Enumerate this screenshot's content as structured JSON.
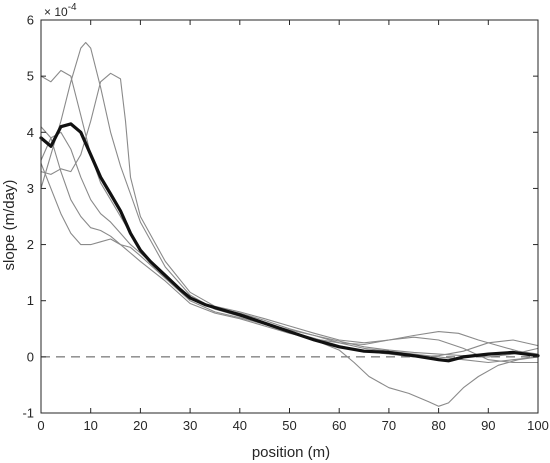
{
  "chart_data": {
    "type": "line",
    "title": "",
    "xlabel": "position (m)",
    "ylabel": "slope (m/day)",
    "y_multiplier_label": "× 10",
    "y_multiplier_exponent": "-4",
    "xlim": [
      0,
      100
    ],
    "ylim": [
      -1,
      6
    ],
    "x_ticks": [
      "0",
      "10",
      "20",
      "30",
      "40",
      "50",
      "60",
      "70",
      "80",
      "90",
      "100"
    ],
    "y_ticks": [
      "-1",
      "0",
      "1",
      "2",
      "3",
      "4",
      "5",
      "6"
    ],
    "grid": false,
    "legend": "none",
    "colors": {
      "mean": "#111111",
      "individual": "#8a8a8a",
      "reference": "#555555",
      "axes": "#262626"
    },
    "reference_line": {
      "y": 0,
      "style": "dashed"
    },
    "series": [
      {
        "role": "mean",
        "x": [
          0,
          2,
          4,
          6,
          8,
          10,
          12,
          14,
          16,
          18,
          20,
          22,
          25,
          28,
          30,
          33,
          36,
          40,
          45,
          50,
          55,
          60,
          65,
          70,
          75,
          80,
          82,
          85,
          90,
          95,
          100
        ],
        "y": [
          3.9,
          3.75,
          4.1,
          4.15,
          4.0,
          3.6,
          3.2,
          2.9,
          2.6,
          2.2,
          1.9,
          1.7,
          1.45,
          1.2,
          1.05,
          0.93,
          0.85,
          0.75,
          0.6,
          0.45,
          0.3,
          0.18,
          0.1,
          0.08,
          0.02,
          -0.05,
          -0.07,
          0.0,
          0.05,
          0.08,
          0.02
        ]
      },
      {
        "role": "individual",
        "x": [
          0,
          2,
          4,
          6,
          8,
          10,
          12,
          14,
          16,
          18,
          20,
          25,
          30,
          35,
          40,
          45,
          50,
          55,
          60,
          65,
          70,
          75,
          80,
          85,
          90,
          95,
          100
        ],
        "y": [
          5.0,
          4.9,
          5.1,
          5.0,
          4.3,
          3.6,
          3.1,
          2.8,
          2.5,
          2.2,
          1.9,
          1.4,
          1.05,
          0.88,
          0.78,
          0.65,
          0.5,
          0.38,
          0.25,
          0.15,
          0.1,
          0.05,
          0.0,
          -0.05,
          -0.1,
          -0.05,
          0.0
        ]
      },
      {
        "role": "individual",
        "x": [
          0,
          2,
          4,
          6,
          8,
          9,
          10,
          12,
          14,
          16,
          18,
          20,
          25,
          30,
          35,
          40,
          45,
          50,
          55,
          60,
          63,
          66,
          70,
          74,
          78,
          80,
          82,
          85,
          88,
          92,
          96,
          100
        ],
        "y": [
          3.0,
          3.6,
          4.2,
          4.9,
          5.5,
          5.6,
          5.5,
          4.8,
          4.0,
          3.4,
          2.9,
          2.4,
          1.6,
          1.1,
          0.85,
          0.75,
          0.6,
          0.45,
          0.3,
          0.12,
          -0.1,
          -0.35,
          -0.55,
          -0.65,
          -0.8,
          -0.88,
          -0.82,
          -0.55,
          -0.35,
          -0.15,
          -0.05,
          0.0
        ]
      },
      {
        "role": "individual",
        "x": [
          0,
          2,
          4,
          6,
          8,
          10,
          12,
          14,
          16,
          17,
          18,
          20,
          25,
          30,
          35,
          40,
          45,
          50,
          55,
          60,
          65,
          70,
          75,
          80,
          85,
          90,
          95,
          100
        ],
        "y": [
          3.3,
          3.25,
          3.35,
          3.3,
          3.6,
          4.2,
          4.9,
          5.05,
          4.95,
          4.2,
          3.2,
          2.5,
          1.7,
          1.15,
          0.9,
          0.8,
          0.68,
          0.55,
          0.42,
          0.3,
          0.25,
          0.3,
          0.35,
          0.3,
          0.15,
          -0.05,
          -0.1,
          -0.1
        ]
      },
      {
        "role": "individual",
        "x": [
          0,
          2,
          4,
          6,
          8,
          10,
          12,
          14,
          16,
          18,
          20,
          25,
          30,
          35,
          40,
          45,
          50,
          55,
          60,
          65,
          70,
          75,
          80,
          85,
          90,
          95,
          100
        ],
        "y": [
          3.45,
          3.0,
          2.55,
          2.2,
          2.0,
          2.0,
          2.05,
          2.1,
          2.0,
          1.95,
          1.8,
          1.4,
          1.0,
          0.8,
          0.7,
          0.58,
          0.45,
          0.33,
          0.2,
          0.1,
          0.05,
          0.0,
          0.02,
          0.1,
          0.25,
          0.3,
          0.2
        ]
      },
      {
        "role": "individual",
        "x": [
          0,
          2,
          4,
          6,
          8,
          10,
          12,
          14,
          16,
          18,
          20,
          25,
          30,
          35,
          40,
          45,
          50,
          55,
          60,
          65,
          70,
          75,
          80,
          84,
          88,
          92,
          96,
          100
        ],
        "y": [
          4.1,
          3.9,
          3.3,
          2.8,
          2.5,
          2.3,
          2.25,
          2.15,
          2.0,
          1.85,
          1.7,
          1.35,
          0.95,
          0.78,
          0.68,
          0.55,
          0.42,
          0.32,
          0.25,
          0.22,
          0.3,
          0.38,
          0.45,
          0.42,
          0.3,
          0.2,
          0.1,
          0.05
        ]
      },
      {
        "role": "individual",
        "x": [
          0,
          2,
          4,
          6,
          8,
          10,
          12,
          14,
          16,
          18,
          20,
          25,
          30,
          35,
          40,
          45,
          50,
          55,
          60,
          65,
          70,
          75,
          80,
          85,
          90,
          95,
          100
        ],
        "y": [
          3.5,
          3.9,
          4.0,
          3.7,
          3.2,
          2.8,
          2.55,
          2.4,
          2.2,
          2.0,
          1.85,
          1.45,
          1.05,
          0.85,
          0.72,
          0.6,
          0.48,
          0.38,
          0.28,
          0.18,
          0.12,
          0.08,
          0.05,
          0.02,
          0.0,
          0.05,
          0.15
        ]
      }
    ]
  }
}
